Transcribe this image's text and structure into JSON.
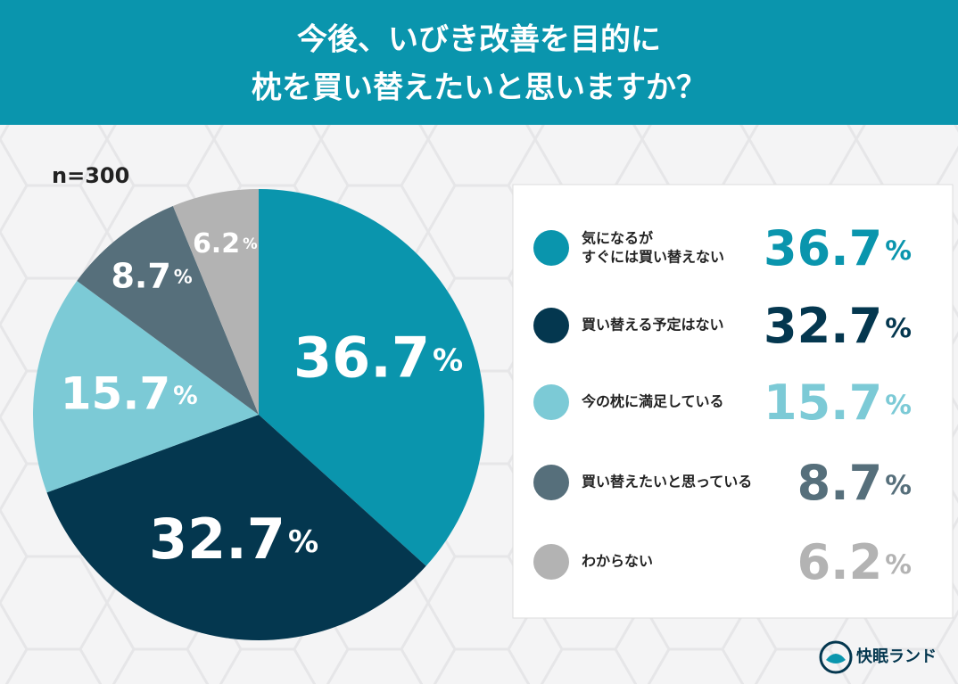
{
  "chart_data": {
    "type": "pie",
    "title": [
      "今後、いびき改善を目的に",
      "枕を買い替えたいと思いますか？"
    ],
    "annotation": "n=300",
    "categories": [
      "気になるが\nすぐには買い替えない",
      "買い替える予定はない",
      "今の枕に満足している",
      "買い替えたいと思っている",
      "わからない"
    ],
    "values": [
      36.7,
      32.7,
      15.7,
      8.7,
      6.2
    ],
    "value_labels": [
      "36.7%",
      "32.7%",
      "15.7%",
      "8.7%",
      "6.2%"
    ],
    "colors": [
      "#0a95ad",
      "#04374f",
      "#7ccad6",
      "#566f7b",
      "#b3b3b3"
    ],
    "brand": "快眠ランド"
  }
}
